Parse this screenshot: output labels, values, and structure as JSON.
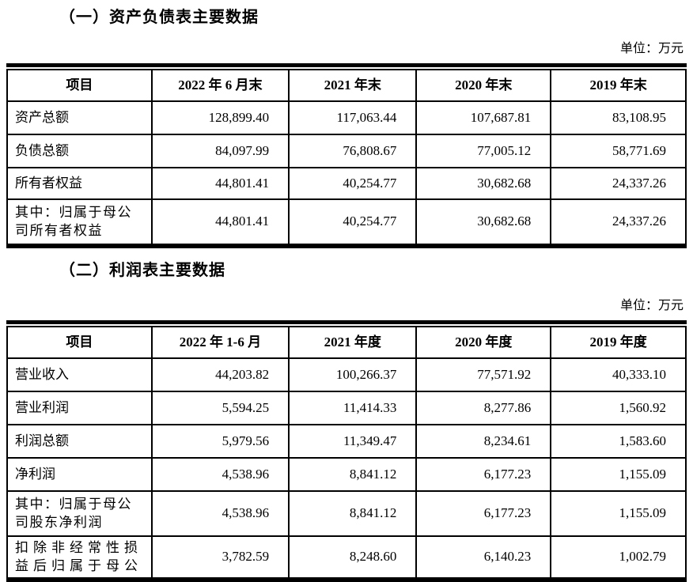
{
  "section1": {
    "title": "（一）资产负债表主要数据",
    "unit_label": "单位：万元",
    "table": {
      "headers": [
        "项目",
        "2022 年 6 月末",
        "2021 年末",
        "2020 年末",
        "2019 年末"
      ],
      "rows": [
        {
          "label": "资产总额",
          "values": [
            "128,899.40",
            "117,063.44",
            "107,687.81",
            "83,108.95"
          ]
        },
        {
          "label": "负债总额",
          "values": [
            "84,097.99",
            "76,808.67",
            "77,005.12",
            "58,771.69"
          ]
        },
        {
          "label": "所有者权益",
          "values": [
            "44,801.41",
            "40,254.77",
            "30,682.68",
            "24,337.26"
          ]
        },
        {
          "label": "其中：归属于母公司所有者权益",
          "values": [
            "44,801.41",
            "40,254.77",
            "30,682.68",
            "24,337.26"
          ]
        }
      ]
    }
  },
  "section2": {
    "title": "（二）利润表主要数据",
    "unit_label": "单位：万元",
    "table": {
      "headers": [
        "项目",
        "2022 年 1-6 月",
        "2021 年度",
        "2020 年度",
        "2019 年度"
      ],
      "rows": [
        {
          "label": "营业收入",
          "values": [
            "44,203.82",
            "100,266.37",
            "77,571.92",
            "40,333.10"
          ]
        },
        {
          "label": "营业利润",
          "values": [
            "5,594.25",
            "11,414.33",
            "8,277.86",
            "1,560.92"
          ]
        },
        {
          "label": "利润总额",
          "values": [
            "5,979.56",
            "11,349.47",
            "8,234.61",
            "1,583.60"
          ]
        },
        {
          "label": "净利润",
          "values": [
            "4,538.96",
            "8,841.12",
            "6,177.23",
            "1,155.09"
          ]
        },
        {
          "label": "其中：归属于母公司股东净利润",
          "values": [
            "4,538.96",
            "8,841.12",
            "6,177.23",
            "1,155.09"
          ]
        },
        {
          "label": "扣除非经常性损益后归属于母公",
          "values": [
            "3,782.59",
            "8,248.60",
            "6,140.23",
            "1,002.79"
          ]
        }
      ]
    }
  }
}
